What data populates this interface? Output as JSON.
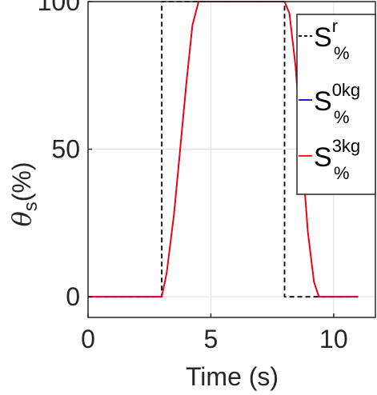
{
  "chart_data": {
    "type": "line",
    "xlabel": "Time (s)",
    "ylabel": {
      "base": "θ",
      "sub": "s",
      "rest": "(%)"
    },
    "xlim": [
      0,
      11.7
    ],
    "ylim": [
      -7,
      100
    ],
    "xticks": [
      0,
      5,
      10
    ],
    "yticks": [
      0,
      50,
      100
    ],
    "grid": true,
    "legend_position": "top-right",
    "series": [
      {
        "name": {
          "base": "S",
          "sup": "r",
          "sub": "%"
        },
        "color": "#000000",
        "style": "dashed",
        "x": [
          0,
          3.0,
          3.0,
          8.0,
          8.0,
          11.0
        ],
        "y": [
          0,
          0,
          100,
          100,
          0,
          0
        ]
      },
      {
        "name": {
          "base": "S",
          "sup": "0kg",
          "sub": "%"
        },
        "color": "#0000cc",
        "style": "solid",
        "x": [
          0,
          3.0,
          3.2,
          3.5,
          3.75,
          4.0,
          4.25,
          4.5,
          8.0,
          8.2,
          8.45,
          8.7,
          8.95,
          9.2,
          9.4,
          11.0
        ],
        "y": [
          0,
          0,
          8,
          28,
          50,
          72,
          92,
          100,
          100,
          96,
          78,
          50,
          22,
          5,
          0,
          0
        ]
      },
      {
        "name": {
          "base": "S",
          "sup": "3kg",
          "sub": "%"
        },
        "color": "#ff0000",
        "style": "solid",
        "x": [
          0,
          3.0,
          3.2,
          3.5,
          3.75,
          4.0,
          4.25,
          4.5,
          8.0,
          8.2,
          8.45,
          8.7,
          8.95,
          9.2,
          9.4,
          11.0
        ],
        "y": [
          0,
          0,
          8,
          28,
          50,
          72,
          92,
          100,
          100,
          96,
          78,
          50,
          22,
          5,
          0,
          0
        ]
      }
    ]
  }
}
